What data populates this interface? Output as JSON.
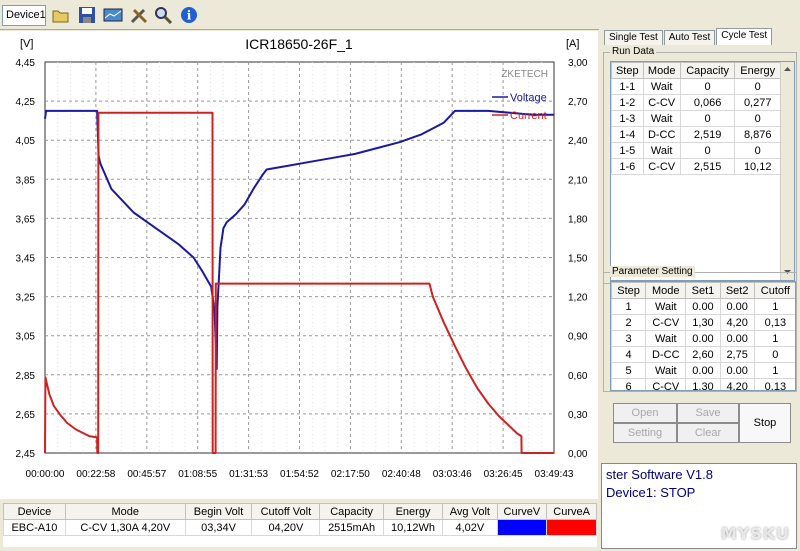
{
  "toolbar": {
    "device_tab": "Device1",
    "icons": [
      "folder-open-icon",
      "save-icon",
      "chart-icon",
      "tools-icon",
      "zoom-icon",
      "info-icon"
    ]
  },
  "chart": {
    "title": "ICR18650-26F_1",
    "left_unit": "[V]",
    "right_unit": "[A]",
    "brand": "ZKETECH",
    "legend": [
      "Voltage",
      "Current"
    ],
    "colors": {
      "voltage": "#1a1aa0",
      "current": "#cc2222"
    }
  },
  "chart_data": {
    "type": "line",
    "x_ticks": [
      "00:00:00",
      "00:22:58",
      "00:45:57",
      "01:08:55",
      "01:31:53",
      "01:54:52",
      "02:17:50",
      "02:40:48",
      "03:03:46",
      "03:26:45",
      "03:49:43"
    ],
    "y_left_ticks": [
      "4,45",
      "4,25",
      "4,05",
      "3,85",
      "3,65",
      "3,45",
      "3,25",
      "3,05",
      "2,85",
      "2,65",
      "2,45"
    ],
    "y_right_ticks": [
      "3,00",
      "2,70",
      "2,40",
      "2,10",
      "1,80",
      "1,50",
      "1,20",
      "0,90",
      "0,60",
      "0,30",
      "0,00"
    ],
    "ylim_left": [
      2.45,
      4.45
    ],
    "ylim_right": [
      0,
      3.0
    ],
    "xlim_min": [
      0,
      229.7
    ],
    "series": [
      {
        "name": "Voltage",
        "axis": "left",
        "x": [
          0,
          0.5,
          2,
          23.5,
          24.2,
          25,
          30,
          40,
          50,
          60,
          67,
          71,
          75,
          76.5,
          77.5,
          77.8,
          78.5,
          79.2,
          80,
          80.5,
          82,
          86,
          90,
          94,
          98,
          100,
          110,
          120,
          130,
          140,
          150,
          160,
          170,
          180,
          185,
          190,
          200,
          210,
          220,
          229.7
        ],
        "y": [
          4.16,
          4.2,
          4.2,
          4.2,
          3.97,
          3.93,
          3.8,
          3.68,
          3.6,
          3.52,
          3.45,
          3.38,
          3.3,
          3.18,
          2.88,
          3.2,
          3.35,
          3.5,
          3.56,
          3.6,
          3.63,
          3.67,
          3.72,
          3.8,
          3.87,
          3.9,
          3.92,
          3.94,
          3.96,
          3.98,
          4.01,
          4.04,
          4.08,
          4.14,
          4.2,
          4.2,
          4.2,
          4.19,
          4.18,
          4.18
        ]
      },
      {
        "name": "Current",
        "axis": "right",
        "x": [
          0,
          0.2,
          2,
          4,
          7,
          10,
          14,
          20,
          23.5,
          23.6,
          24,
          24.1,
          75.6,
          75.7,
          77,
          77.1,
          173.5,
          175,
          180,
          185,
          190,
          195,
          200,
          205,
          210,
          213,
          215,
          215.1,
          229.7
        ],
        "y": [
          0,
          0.58,
          0.45,
          0.36,
          0.29,
          0.23,
          0.18,
          0.13,
          0.12,
          0,
          0,
          2.61,
          2.61,
          0,
          0,
          1.3,
          1.3,
          1.2,
          1.0,
          0.82,
          0.65,
          0.5,
          0.38,
          0.28,
          0.2,
          0.15,
          0.13,
          0,
          0
        ]
      }
    ]
  },
  "tabs": [
    "Single Test",
    "Auto Test",
    "Cycle Test"
  ],
  "run_data": {
    "title": "Run Data",
    "headers": [
      "Step",
      "Mode",
      "Capacity",
      "Energy"
    ],
    "rows": [
      [
        "1-1",
        "Wait",
        "0",
        "0"
      ],
      [
        "1-2",
        "C-CV",
        "0,066",
        "0,277"
      ],
      [
        "1-3",
        "Wait",
        "0",
        "0"
      ],
      [
        "1-4",
        "D-CC",
        "2,519",
        "8,876"
      ],
      [
        "1-5",
        "Wait",
        "0",
        "0"
      ],
      [
        "1-6",
        "C-CV",
        "2,515",
        "10,12"
      ]
    ]
  },
  "param": {
    "title": "Parameter Setting",
    "headers": [
      "Step",
      "Mode",
      "Set1",
      "Set2",
      "Cutoff"
    ],
    "rows": [
      [
        "1",
        "Wait",
        "0.00",
        "0.00",
        "1"
      ],
      [
        "2",
        "C-CV",
        "1,30",
        "4,20",
        "0,13"
      ],
      [
        "3",
        "Wait",
        "0.00",
        "0.00",
        "1"
      ],
      [
        "4",
        "D-CC",
        "2,60",
        "2,75",
        "0"
      ],
      [
        "5",
        "Wait",
        "0.00",
        "0.00",
        "1"
      ],
      [
        "6",
        "C-CV",
        "1,30",
        "4,20",
        "0,13"
      ]
    ]
  },
  "buttons": {
    "open": "Open",
    "save": "Save",
    "setting": "Setting",
    "clear": "Clear",
    "stop": "Stop"
  },
  "status": {
    "line1": "ster Software V1.8",
    "line2": "Device1: STOP"
  },
  "bottom": {
    "headers": [
      "Device",
      "Mode",
      "Begin Volt",
      "Cutoff Volt",
      "Capacity",
      "Energy",
      "Avg Volt",
      "CurveV",
      "CurveA"
    ],
    "row": [
      "EBC-A10",
      "C-CV  1,30A  4,20V",
      "03,34V",
      "04,20V",
      "2515mAh",
      "10,12Wh",
      "4,02V"
    ],
    "curve_colors": [
      "#0000ff",
      "#ff0000"
    ]
  },
  "watermark": "MYSKU"
}
